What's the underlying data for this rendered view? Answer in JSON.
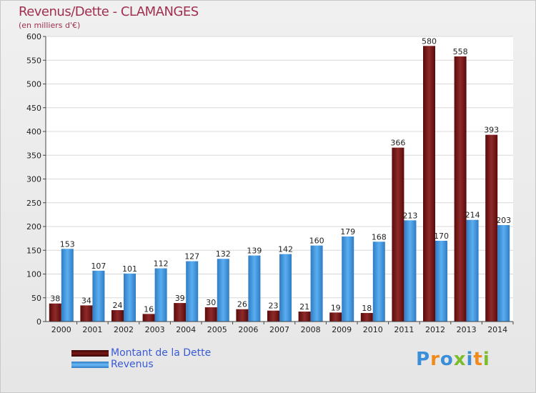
{
  "colors": {
    "debt": "#7a1818",
    "revenue": "#3b8fd8",
    "title": "#a03050",
    "legend_text": "#3a5ad6"
  },
  "header": {
    "title": "Revenus/Dette - CLAMANGES",
    "subtitle": "(en milliers d'€)"
  },
  "logo": {
    "text": "Proxiti"
  },
  "chart_data": {
    "type": "bar",
    "title": "Revenus/Dette - CLAMANGES",
    "subtitle": "(en milliers d'€)",
    "xlabel": "",
    "ylabel": "",
    "ylim": [
      0,
      600
    ],
    "yticks": [
      0,
      50,
      100,
      150,
      200,
      250,
      300,
      350,
      400,
      450,
      500,
      550,
      600
    ],
    "grid": true,
    "legend_position": "bottom-left",
    "categories": [
      "2000",
      "2001",
      "2002",
      "2003",
      "2004",
      "2005",
      "2006",
      "2007",
      "2008",
      "2009",
      "2010",
      "2011",
      "2012",
      "2013",
      "2014"
    ],
    "series": [
      {
        "name": "Montant de la Dette",
        "color": "#7a1818",
        "values": [
          38,
          34,
          24,
          16,
          39,
          30,
          26,
          23,
          21,
          19,
          18,
          366,
          580,
          558,
          393
        ]
      },
      {
        "name": "Revenus",
        "color": "#3b8fd8",
        "values": [
          153,
          107,
          101,
          112,
          127,
          132,
          139,
          142,
          160,
          179,
          168,
          213,
          170,
          214,
          203
        ]
      }
    ]
  }
}
